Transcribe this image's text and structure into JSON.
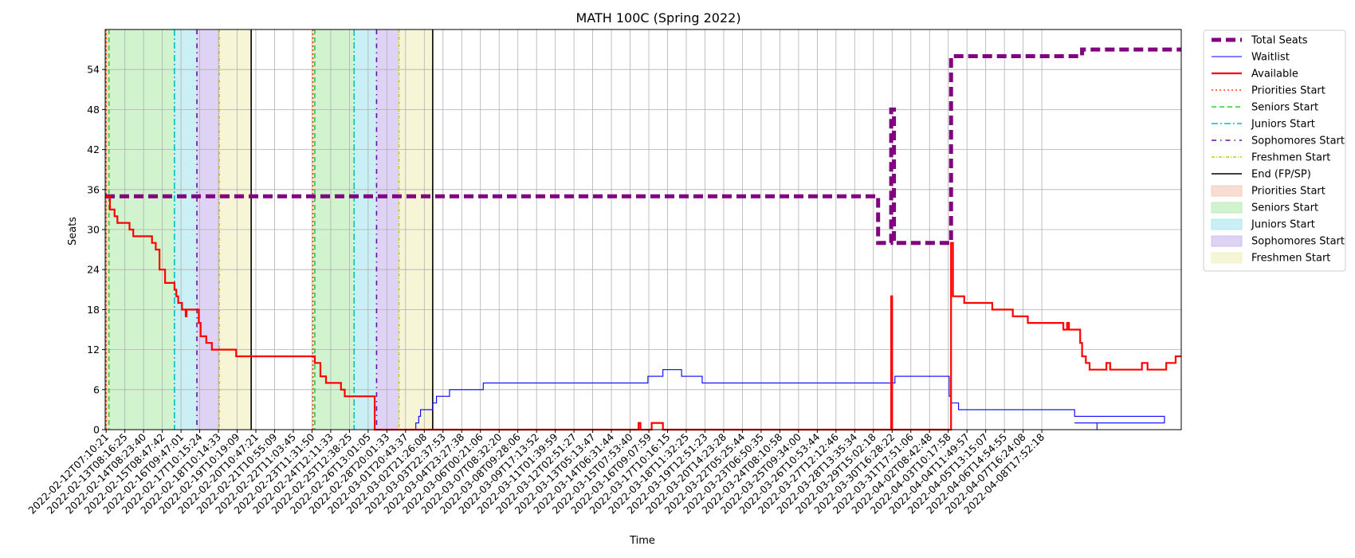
{
  "chart_data": {
    "type": "line",
    "title": "MATH 100C (Spring 2022)",
    "xlabel": "Time",
    "ylabel": "Seats",
    "xlim": [
      0,
      57.5
    ],
    "ylim": [
      0,
      60
    ],
    "grid": true,
    "legend_position": "outside-top-right",
    "x_tick_labels": [
      "2022-02-12T07:10:21",
      "2022-02-13T08:16:25",
      "2022-02-14T08:23:40",
      "2022-02-15T08:47:42",
      "2022-02-16T09:47:01",
      "2022-02-17T10:15:24",
      "2022-02-18T10:14:33",
      "2022-02-19T10:19:09",
      "2022-02-20T10:47:21",
      "2022-02-21T10:55:09",
      "2022-02-22T11:03:45",
      "2022-02-23T11:31:50",
      "2022-02-24T12:11:33",
      "2022-02-25T12:38:25",
      "2022-02-26T13:01:05",
      "2022-02-28T20:01:33",
      "2022-03-01T20:43:37",
      "2022-03-02T21:26:08",
      "2022-03-03T22:37:53",
      "2022-03-04T23:27:38",
      "2022-03-06T00:21:06",
      "2022-03-07T08:32:20",
      "2022-03-08T09:28:06",
      "2022-03-09T17:13:52",
      "2022-03-11T01:39:59",
      "2022-03-12T02:51:27",
      "2022-03-13T05:13:47",
      "2022-03-14T06:31:44",
      "2022-03-15T07:53:40",
      "2022-03-16T09:07:59",
      "2022-03-17T10:16:15",
      "2022-03-18T11:32:25",
      "2022-03-19T12:51:23",
      "2022-03-20T14:23:28",
      "2022-03-22T05:25:44",
      "2022-03-23T06:50:35",
      "2022-03-24T08:10:58",
      "2022-03-25T09:34:00",
      "2022-03-26T10:53:44",
      "2022-03-27T12:12:46",
      "2022-03-28T13:35:34",
      "2022-03-29T15:02:18",
      "2022-03-30T16:28:22",
      "2022-03-31T17:51:06",
      "2022-04-02T08:42:48",
      "2022-04-03T10:17:58",
      "2022-04-04T11:49:57",
      "2022-04-05T13:15:07",
      "2022-04-06T14:54:55",
      "2022-04-07T16:24:08",
      "2022-04-08T17:52:18"
    ],
    "y_ticks": [
      0,
      6,
      12,
      18,
      24,
      30,
      36,
      42,
      48,
      54
    ],
    "series": [
      {
        "name": "Total Seats",
        "color": "#800080",
        "style": "dashed-thick",
        "points": [
          [
            0,
            35
          ],
          [
            41.3,
            35
          ],
          [
            41.3,
            28
          ],
          [
            42.0,
            28
          ],
          [
            42.0,
            48
          ],
          [
            42.15,
            48
          ],
          [
            42.15,
            28
          ],
          [
            45.2,
            28
          ],
          [
            45.2,
            56
          ],
          [
            52.2,
            56
          ],
          [
            52.2,
            57
          ],
          [
            57.5,
            57
          ]
        ]
      },
      {
        "name": "Waitlist",
        "color": "#0000ff",
        "style": "solid-thin",
        "points": [
          [
            0,
            0
          ],
          [
            16.6,
            0
          ],
          [
            16.6,
            1
          ],
          [
            16.75,
            1
          ],
          [
            16.75,
            2
          ],
          [
            16.85,
            2
          ],
          [
            16.85,
            3
          ],
          [
            17.5,
            3
          ],
          [
            17.5,
            4
          ],
          [
            17.7,
            4
          ],
          [
            17.7,
            5
          ],
          [
            18.4,
            5
          ],
          [
            18.4,
            6
          ],
          [
            20.2,
            6
          ],
          [
            20.2,
            7
          ],
          [
            29.0,
            7
          ],
          [
            29.0,
            8
          ],
          [
            29.8,
            8
          ],
          [
            29.8,
            9
          ],
          [
            30.8,
            9
          ],
          [
            30.8,
            8
          ],
          [
            31.9,
            8
          ],
          [
            31.9,
            7
          ],
          [
            42.2,
            7
          ],
          [
            42.2,
            8
          ],
          [
            45.1,
            8
          ],
          [
            45.1,
            5
          ],
          [
            45.2,
            5
          ],
          [
            45.2,
            4
          ],
          [
            45.6,
            4
          ],
          [
            45.6,
            3
          ],
          [
            51.8,
            3
          ],
          [
            51.8,
            2
          ],
          [
            56.6,
            2
          ],
          [
            56.6,
            1
          ],
          [
            51.8,
            1
          ],
          [
            51.8,
            1
          ],
          [
            53.0,
            1
          ],
          [
            53.0,
            0
          ],
          [
            57.5,
            0
          ]
        ]
      },
      {
        "name": "Available",
        "color": "#ff0000",
        "style": "solid-thick",
        "points": [
          [
            0,
            35
          ],
          [
            0.25,
            35
          ],
          [
            0.25,
            33
          ],
          [
            0.5,
            33
          ],
          [
            0.5,
            32
          ],
          [
            0.65,
            32
          ],
          [
            0.65,
            31
          ],
          [
            1.3,
            31
          ],
          [
            1.3,
            30
          ],
          [
            1.5,
            30
          ],
          [
            1.5,
            29
          ],
          [
            2.5,
            29
          ],
          [
            2.5,
            28
          ],
          [
            2.7,
            28
          ],
          [
            2.7,
            27
          ],
          [
            2.9,
            27
          ],
          [
            2.9,
            24
          ],
          [
            3.2,
            24
          ],
          [
            3.2,
            22
          ],
          [
            3.7,
            22
          ],
          [
            3.7,
            21
          ],
          [
            3.8,
            21
          ],
          [
            3.8,
            20
          ],
          [
            3.9,
            20
          ],
          [
            3.9,
            19
          ],
          [
            4.1,
            19
          ],
          [
            4.1,
            18
          ],
          [
            4.3,
            18
          ],
          [
            4.3,
            17
          ],
          [
            4.35,
            17
          ],
          [
            4.35,
            18
          ],
          [
            5.0,
            18
          ],
          [
            5.0,
            16
          ],
          [
            5.1,
            16
          ],
          [
            5.1,
            14
          ],
          [
            5.4,
            14
          ],
          [
            5.4,
            13
          ],
          [
            5.7,
            13
          ],
          [
            5.7,
            12
          ],
          [
            7.0,
            12
          ],
          [
            7.0,
            11
          ],
          [
            11.2,
            11
          ],
          [
            11.2,
            10
          ],
          [
            11.5,
            10
          ],
          [
            11.5,
            8
          ],
          [
            11.8,
            8
          ],
          [
            11.8,
            7
          ],
          [
            12.6,
            7
          ],
          [
            12.6,
            6
          ],
          [
            12.8,
            6
          ],
          [
            12.8,
            5
          ],
          [
            14.4,
            5
          ],
          [
            14.4,
            0
          ],
          [
            28.5,
            0
          ],
          [
            28.5,
            1
          ],
          [
            28.6,
            1
          ],
          [
            28.6,
            0
          ],
          [
            29.2,
            0
          ],
          [
            29.2,
            1
          ],
          [
            29.8,
            1
          ],
          [
            29.8,
            0
          ],
          [
            42.0,
            0
          ],
          [
            42.0,
            20
          ],
          [
            42.05,
            20
          ],
          [
            42.05,
            0
          ],
          [
            45.2,
            0
          ],
          [
            45.2,
            28
          ],
          [
            45.3,
            28
          ],
          [
            45.3,
            20
          ],
          [
            45.9,
            20
          ],
          [
            45.9,
            19
          ],
          [
            47.4,
            19
          ],
          [
            47.4,
            18
          ],
          [
            48.5,
            18
          ],
          [
            48.5,
            17
          ],
          [
            49.3,
            17
          ],
          [
            49.3,
            16
          ],
          [
            51.2,
            16
          ],
          [
            51.2,
            15
          ],
          [
            51.4,
            15
          ],
          [
            51.4,
            16
          ],
          [
            51.5,
            16
          ],
          [
            51.5,
            15
          ],
          [
            52.1,
            15
          ],
          [
            52.1,
            13
          ],
          [
            52.2,
            13
          ],
          [
            52.2,
            11
          ],
          [
            52.4,
            11
          ],
          [
            52.4,
            10
          ],
          [
            52.6,
            10
          ],
          [
            52.6,
            9
          ],
          [
            53.5,
            9
          ],
          [
            53.5,
            10
          ],
          [
            53.7,
            10
          ],
          [
            53.7,
            9
          ],
          [
            55.4,
            9
          ],
          [
            55.4,
            10
          ],
          [
            55.7,
            10
          ],
          [
            55.7,
            9
          ],
          [
            56.7,
            9
          ],
          [
            56.7,
            10
          ],
          [
            57.2,
            10
          ],
          [
            57.2,
            11
          ],
          [
            57.5,
            11
          ]
        ]
      }
    ],
    "phase_lines": [
      {
        "name": "Priorities Start",
        "color": "#ff4500",
        "style": "dotted",
        "positions": [
          0.05,
          11.1
        ]
      },
      {
        "name": "Seniors Start",
        "color": "#32cd32",
        "style": "dashed",
        "positions": [
          0.2,
          11.2
        ]
      },
      {
        "name": "Juniors Start",
        "color": "#00bfbf",
        "style": "dashdot",
        "positions": [
          3.7,
          13.3
        ]
      },
      {
        "name": "Sophomores Start",
        "color": "#6a0dad",
        "style": "dashdot-sparse",
        "positions": [
          4.9,
          14.5
        ]
      },
      {
        "name": "Freshmen Start",
        "color": "#cccc00",
        "style": "dashdot-fine",
        "positions": [
          6.1,
          15.7
        ]
      },
      {
        "name": "End (FP/SP)",
        "color": "#000000",
        "style": "solid",
        "positions": [
          7.8,
          17.5
        ]
      }
    ],
    "phase_spans": [
      {
        "name": "Priorities Start",
        "color": "#f4c7b3",
        "ranges": [
          [
            0.05,
            0.2
          ],
          [
            11.1,
            11.2
          ]
        ]
      },
      {
        "name": "Seniors Start",
        "color": "#b3ebae",
        "ranges": [
          [
            0.2,
            3.7
          ],
          [
            11.2,
            13.3
          ]
        ]
      },
      {
        "name": "Juniors Start",
        "color": "#a6e5ec",
        "ranges": [
          [
            3.7,
            4.9
          ],
          [
            13.3,
            14.5
          ]
        ]
      },
      {
        "name": "Sophomores Start",
        "color": "#c8b5ee",
        "ranges": [
          [
            4.9,
            6.1
          ],
          [
            14.5,
            15.7
          ]
        ]
      },
      {
        "name": "Freshmen Start",
        "color": "#f0f0bc",
        "ranges": [
          [
            6.1,
            7.8
          ],
          [
            15.7,
            17.5
          ]
        ]
      }
    ],
    "legend": [
      {
        "label": "Total Seats",
        "kind": "line",
        "color": "#800080",
        "style": "dashed-thick"
      },
      {
        "label": "Waitlist",
        "kind": "line",
        "color": "#0000ff",
        "style": "solid-thin"
      },
      {
        "label": "Available",
        "kind": "line",
        "color": "#ff0000",
        "style": "solid-thick"
      },
      {
        "label": "Priorities Start",
        "kind": "line",
        "color": "#ff4500",
        "style": "dotted"
      },
      {
        "label": "Seniors Start",
        "kind": "line",
        "color": "#32cd32",
        "style": "dashed"
      },
      {
        "label": "Juniors Start",
        "kind": "line",
        "color": "#00bfbf",
        "style": "dashdot"
      },
      {
        "label": "Sophomores Start",
        "kind": "line",
        "color": "#6a0dad",
        "style": "dashdot-sparse"
      },
      {
        "label": "Freshmen Start",
        "kind": "line",
        "color": "#cccc00",
        "style": "dashdot-fine"
      },
      {
        "label": "End (FP/SP)",
        "kind": "line",
        "color": "#000000",
        "style": "solid"
      },
      {
        "label": "Priorities Start",
        "kind": "patch",
        "color": "#f4c7b3"
      },
      {
        "label": "Seniors Start",
        "kind": "patch",
        "color": "#b3ebae"
      },
      {
        "label": "Juniors Start",
        "kind": "patch",
        "color": "#a6e5ec"
      },
      {
        "label": "Sophomores Start",
        "kind": "patch",
        "color": "#c8b5ee"
      },
      {
        "label": "Freshmen Start",
        "kind": "patch",
        "color": "#f0f0bc"
      }
    ]
  }
}
